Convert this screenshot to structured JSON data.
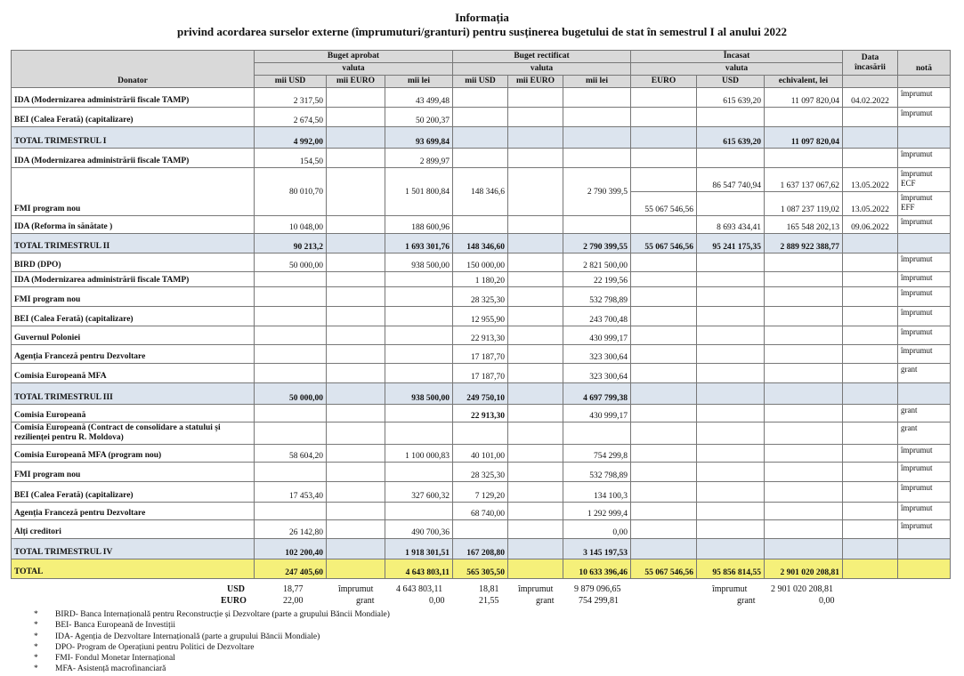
{
  "title": "Informația",
  "subtitle": "privind acordarea surselor externe (împrumuturi/granturi) pentru susținerea bugetului de stat în semestrul I al anului 2022",
  "headers": {
    "donator": "Donator",
    "buget_aprobat": "Buget aprobat",
    "buget_rectificat": "Buget rectificat",
    "incasat": "Încasat",
    "valuta": "valuta",
    "data": "Data încasării",
    "nota": "notă",
    "sub": [
      "mii USD",
      "mii EURO",
      "mii lei",
      "mii USD",
      "mii EURO",
      "mii lei",
      "EURO",
      "USD",
      "echivalent, lei"
    ]
  },
  "rows": [
    {
      "type": "row",
      "label": "IDA  (Modernizarea administrării fiscale TAMP)",
      "cells": [
        "2 317,50",
        "",
        "43 499,48",
        "",
        "",
        "",
        "",
        "615 639,20",
        "11 097 820,04",
        "04.02.2022",
        "împrumut"
      ]
    },
    {
      "type": "row",
      "label": "BEI (Calea Ferată) (capitalizare)",
      "cells": [
        "2 674,50",
        "",
        "50 200,37",
        "",
        "",
        "",
        "",
        "",
        "",
        "",
        "împrumut"
      ]
    },
    {
      "type": "total",
      "label": "TOTAL TRIMESTRUL I",
      "cells": [
        "4 992,00",
        "",
        "93 699,84",
        "",
        "",
        "",
        "",
        "615 639,20",
        "11 097 820,04",
        "",
        ""
      ]
    },
    {
      "type": "row",
      "label": "IDA (Modernizarea administrării fiscale TAMP)",
      "cells": [
        "154,50",
        "",
        "2 899,97",
        "",
        "",
        "",
        "",
        "",
        "",
        "",
        "împrumut"
      ]
    },
    {
      "type": "split",
      "label": "FMI program nou",
      "cells": [
        "80 010,70",
        "",
        "1 501 800,84",
        "148 346,6",
        "",
        "2 790 399,5"
      ],
      "split": [
        [
          "",
          "86 547 740,94",
          "1 637 137 067,62",
          "13.05.2022",
          "împrumut\nECF"
        ],
        [
          "55 067 546,56",
          "",
          "1 087 237 119,02",
          "13.05.2022",
          "împrumut\nEFF"
        ]
      ]
    },
    {
      "type": "row",
      "label": "IDA (Reforma în sănătate )",
      "cells": [
        "10 048,00",
        "",
        "188 600,96",
        "",
        "",
        "",
        "",
        "8 693 434,41",
        "165 548 202,13",
        "09.06.2022",
        "împrumut"
      ]
    },
    {
      "type": "total",
      "label": "TOTAL TRIMESTRUL II",
      "cells": [
        "90 213,2",
        "",
        "1 693 301,76",
        "148 346,60",
        "",
        "2 790 399,55",
        "55 067 546,56",
        "95 241 175,35",
        "2 889 922 388,77",
        "",
        ""
      ]
    },
    {
      "type": "row",
      "label": "BIRD (DPO)",
      "cells": [
        "50 000,00",
        "",
        "938 500,00",
        "150 000,00",
        "",
        "2 821 500,00",
        "",
        "",
        "",
        "",
        "împrumut"
      ]
    },
    {
      "type": "row",
      "label": "IDA (Modernizarea administrării fiscale TAMP)",
      "cells": [
        "",
        "",
        "",
        "1 180,20",
        "",
        "22 199,56",
        "",
        "",
        "",
        "",
        "împrumut"
      ]
    },
    {
      "type": "row",
      "label": "FMI program nou",
      "cells": [
        "",
        "",
        "",
        "28 325,30",
        "",
        "532 798,89",
        "",
        "",
        "",
        "",
        "împrumut"
      ]
    },
    {
      "type": "row",
      "label": "BEI (Calea Ferată) (capitalizare)",
      "cells": [
        "",
        "",
        "",
        "12 955,90",
        "",
        "243 700,48",
        "",
        "",
        "",
        "",
        "împrumut"
      ]
    },
    {
      "type": "row",
      "label": "Guvernul Poloniei",
      "cells": [
        "",
        "",
        "",
        "22 913,30",
        "",
        "430 999,17",
        "",
        "",
        "",
        "",
        "împrumut"
      ]
    },
    {
      "type": "row",
      "label": "Agenția Franceză pentru Dezvoltare",
      "cells": [
        "",
        "",
        "",
        "17 187,70",
        "",
        "323 300,64",
        "",
        "",
        "",
        "",
        "împrumut"
      ]
    },
    {
      "type": "row",
      "label": "Comisia Europeană MFA",
      "cells": [
        "",
        "",
        "",
        "17 187,70",
        "",
        "323 300,64",
        "",
        "",
        "",
        "",
        "grant"
      ]
    },
    {
      "type": "total",
      "label": "TOTAL TRIMESTRUL III",
      "cells": [
        "50 000,00",
        "",
        "938 500,00",
        "249 750,10",
        "",
        "4 697 799,38",
        "",
        "",
        "",
        "",
        ""
      ]
    },
    {
      "type": "row",
      "label": "Comisia Europeană",
      "cells": [
        "",
        "",
        "",
        "22 913,30",
        "",
        "430 999,17",
        "",
        "",
        "",
        "",
        "grant"
      ]
    },
    {
      "type": "row",
      "label": "Comisia Europeană (Contract de consolidare a statului și rezilienței pentru R. Moldova)",
      "cells": [
        "",
        "",
        "",
        "",
        "",
        "",
        "",
        "",
        "",
        "",
        "grant"
      ]
    },
    {
      "type": "row",
      "label": "Comisia Europeană MFA (program nou)",
      "cells": [
        "58 604,20",
        "",
        "1 100 000,83",
        "40 101,00",
        "",
        "754 299,8",
        "",
        "",
        "",
        "",
        "împrumut"
      ]
    },
    {
      "type": "row",
      "label": "FMI program nou",
      "cells": [
        "",
        "",
        "",
        "28 325,30",
        "",
        "532 798,89",
        "",
        "",
        "",
        "",
        "împrumut"
      ]
    },
    {
      "type": "row",
      "label": "BEI (Calea Ferată) (capitalizare)",
      "cells": [
        "17 453,40",
        "",
        "327 600,32",
        "7 129,20",
        "",
        "134 100,3",
        "",
        "",
        "",
        "",
        "împrumut"
      ]
    },
    {
      "type": "row",
      "label": "Agenția Franceză pentru Dezvoltare",
      "cells": [
        "",
        "",
        "",
        "68 740,00",
        "",
        "1 292 999,4",
        "",
        "",
        "",
        "",
        "împrumut"
      ]
    },
    {
      "type": "row",
      "label": "Alți creditori",
      "cells": [
        "26 142,80",
        "",
        "490 700,36",
        "",
        "",
        "0,00",
        "",
        "",
        "",
        "",
        "împrumut"
      ]
    },
    {
      "type": "total",
      "label": "TOTAL TRIMESTRUL IV",
      "cells": [
        "102 200,40",
        "",
        "1 918 301,51",
        "167 208,80",
        "",
        "3 145 197,53",
        "",
        "",
        "",
        "",
        ""
      ]
    },
    {
      "type": "grand",
      "label": "TOTAL",
      "cells": [
        "247 405,60",
        "",
        "4 643 803,11",
        "565 305,50",
        "",
        "10 633 396,46",
        "55 067 546,56",
        "95 856 814,55",
        "2 901 020 208,81",
        "",
        ""
      ]
    }
  ],
  "summary": {
    "usd": {
      "label": "USD",
      "rate1": "18,77",
      "type1": "împrumut",
      "val1": "4 643 803,11",
      "rate2": "18,81",
      "type2": "împrumut",
      "val2": "9 879 096,65",
      "type3": "împrumut",
      "val3": "2 901 020 208,81"
    },
    "euro": {
      "label": "EURO",
      "rate1": "22,00",
      "type1": "grant",
      "val1": "0,00",
      "rate2": "21,55",
      "type2": "grant",
      "val2": "754 299,81",
      "type3": "grant",
      "val3": "0,00"
    }
  },
  "legend": [
    "BIRD- Banca Internațională pentru Reconstrucție și Dezvoltare (parte a grupului Băncii Mondiale)",
    "BEI- Banca Europeană de Investiții",
    "IDA- Agenția de Dezvoltare Internațională (parte a grupului Băncii Mondiale)",
    "DPO- Program de Operațiuni pentru Politici de Dezvoltare",
    "FMI- Fondul Monetar Internațional",
    "MFA- Asistență macrofinanciară"
  ]
}
